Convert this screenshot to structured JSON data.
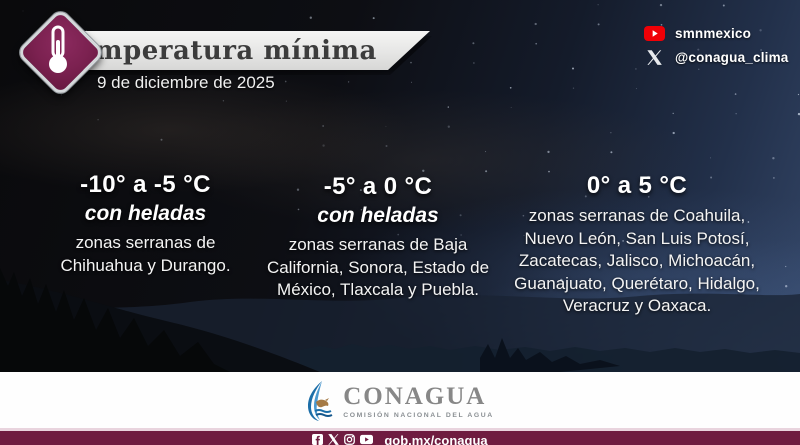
{
  "header": {
    "title": "Temperatura mínima",
    "date": "9 de diciembre de 2025"
  },
  "social": {
    "youtube_handle": "smnmexico",
    "x_handle": "@conagua_clima"
  },
  "columns": [
    {
      "range": "-10° a -5 °C",
      "note": "con heladas",
      "description": "zonas serranas de Chihuahua y Durango."
    },
    {
      "range": "-5° a 0 °C",
      "note": "con heladas",
      "description": "zonas serranas de Baja California, Sonora, Estado de México, Tlaxcala y Puebla."
    },
    {
      "range": "0° a 5 °C",
      "note": "",
      "description": "zonas serranas de Coahuila, Nuevo León, San Luis Potosí, Zacatecas, Jalisco, Michoacán, Guanajuato, Querétaro, Hidalgo, Veracruz y Oaxaca."
    }
  ],
  "footer": {
    "logo_text": "CONAGUA",
    "logo_caption": "COMISIÓN NACIONAL DEL AGUA",
    "url": "gob.mx/conagua"
  },
  "icons": {
    "diamond": "thermometer-icon",
    "social": [
      "youtube-icon",
      "x-icon"
    ],
    "footer": [
      "facebook-icon",
      "x-icon",
      "instagram-icon",
      "youtube-icon"
    ]
  },
  "colors": {
    "brand_maroon": "#6f1c40",
    "diamond_maroon": "#7b2150",
    "youtube_red": "#f00006",
    "banner_gray": "#e6e6e5",
    "pink_divider": "#e9d4de",
    "logo_blue": "#1c6ea8",
    "logo_brown": "#a57a45"
  }
}
